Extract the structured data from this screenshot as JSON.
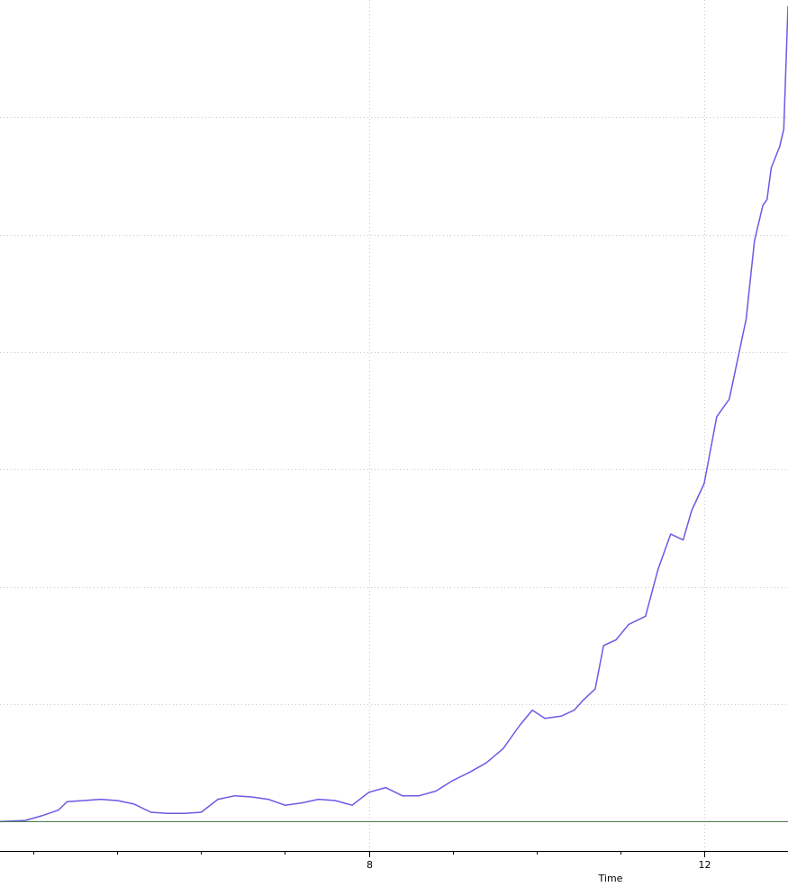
{
  "chart_data": {
    "type": "line",
    "title": "",
    "xlabel": "Time",
    "ylabel": "",
    "xlim": [
      3.6,
      13.0
    ],
    "ylim": [
      -0.25,
      7.0
    ],
    "grid": true,
    "legend": "none",
    "x_ticks": [
      {
        "value": 8,
        "label": "8"
      },
      {
        "value": 12,
        "label": "12"
      }
    ],
    "x_minor_ticks": [
      4,
      5,
      6,
      7,
      8,
      9,
      10,
      11,
      12
    ],
    "y_grid_values": [
      0,
      1,
      2,
      3,
      4,
      5,
      6
    ],
    "colors": {
      "series": "#6a5ae6",
      "baseline": "#3f6b3a",
      "grid": "#c8c8c8",
      "axis": "#000000"
    },
    "series": [
      {
        "color": "#6a5ae6",
        "points": [
          [
            3.6,
            0.0
          ],
          [
            3.9,
            0.01
          ],
          [
            4.1,
            0.05
          ],
          [
            4.3,
            0.1
          ],
          [
            4.4,
            0.17
          ],
          [
            4.6,
            0.18
          ],
          [
            4.8,
            0.19
          ],
          [
            5.0,
            0.18
          ],
          [
            5.2,
            0.15
          ],
          [
            5.4,
            0.08
          ],
          [
            5.6,
            0.07
          ],
          [
            5.8,
            0.07
          ],
          [
            6.0,
            0.08
          ],
          [
            6.2,
            0.19
          ],
          [
            6.4,
            0.22
          ],
          [
            6.6,
            0.21
          ],
          [
            6.8,
            0.19
          ],
          [
            7.0,
            0.14
          ],
          [
            7.2,
            0.16
          ],
          [
            7.4,
            0.19
          ],
          [
            7.6,
            0.18
          ],
          [
            7.8,
            0.14
          ],
          [
            8.0,
            0.25
          ],
          [
            8.2,
            0.29
          ],
          [
            8.4,
            0.22
          ],
          [
            8.6,
            0.22
          ],
          [
            8.8,
            0.26
          ],
          [
            9.0,
            0.35
          ],
          [
            9.2,
            0.42
          ],
          [
            9.4,
            0.5
          ],
          [
            9.6,
            0.62
          ],
          [
            9.8,
            0.82
          ],
          [
            9.95,
            0.95
          ],
          [
            10.1,
            0.88
          ],
          [
            10.3,
            0.9
          ],
          [
            10.45,
            0.95
          ],
          [
            10.55,
            1.03
          ],
          [
            10.7,
            1.13
          ],
          [
            10.8,
            1.5
          ],
          [
            10.95,
            1.55
          ],
          [
            11.1,
            1.68
          ],
          [
            11.3,
            1.75
          ],
          [
            11.45,
            2.15
          ],
          [
            11.6,
            2.45
          ],
          [
            11.75,
            2.4
          ],
          [
            11.85,
            2.65
          ],
          [
            12.0,
            2.88
          ],
          [
            12.15,
            3.45
          ],
          [
            12.3,
            3.6
          ],
          [
            12.5,
            4.28
          ],
          [
            12.6,
            4.95
          ],
          [
            12.7,
            5.25
          ],
          [
            12.75,
            5.3
          ],
          [
            12.8,
            5.57
          ],
          [
            12.9,
            5.75
          ],
          [
            12.95,
            5.9
          ],
          [
            13.0,
            6.95
          ]
        ]
      },
      {
        "color": "#3f6b3a",
        "points": [
          [
            3.6,
            0.0
          ],
          [
            13.0,
            0.0
          ]
        ]
      }
    ]
  }
}
